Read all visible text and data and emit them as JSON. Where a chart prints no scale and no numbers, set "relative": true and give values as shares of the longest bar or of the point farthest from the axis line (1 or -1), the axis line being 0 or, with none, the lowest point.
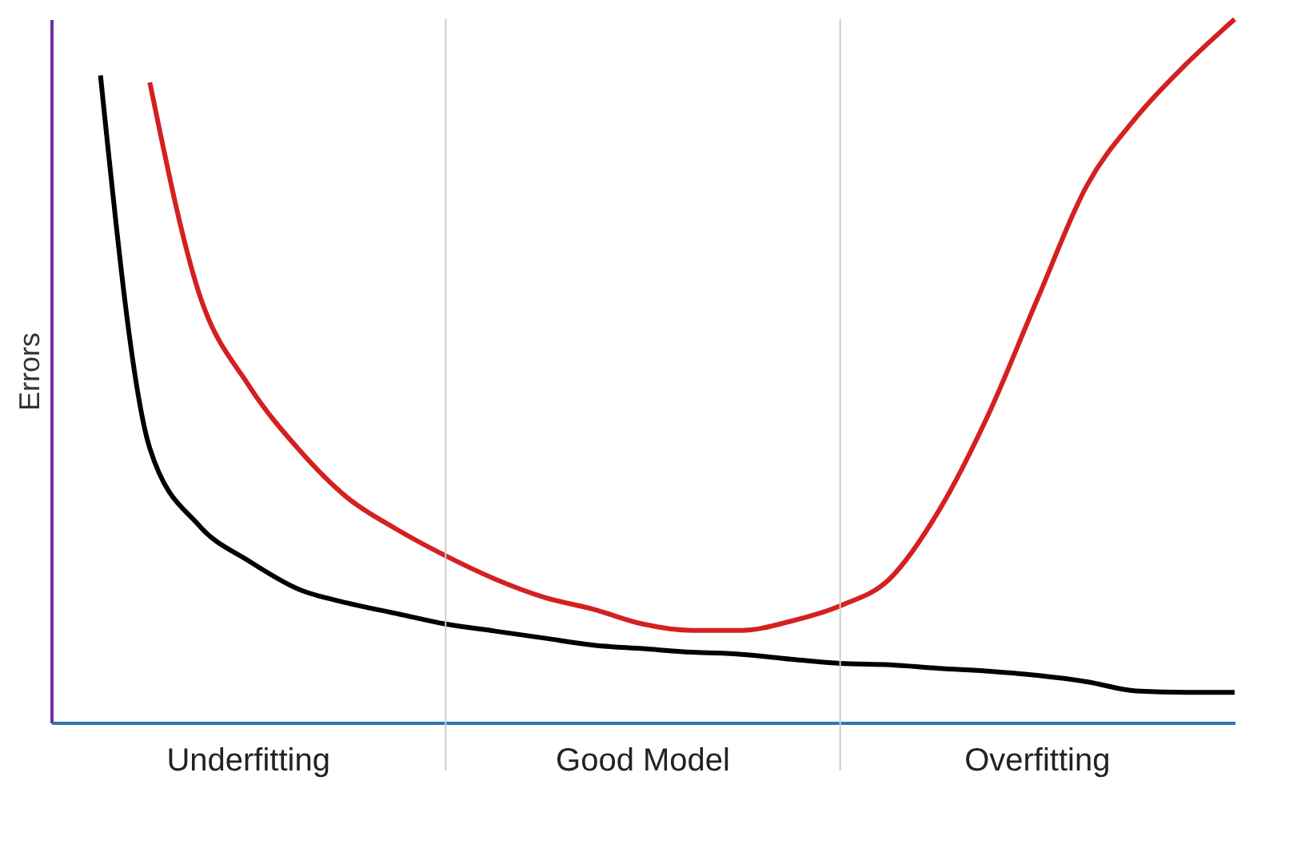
{
  "chart_data": {
    "type": "line",
    "relative": true,
    "ylabel": "Errors",
    "grid": false,
    "marker": "none",
    "line_style": "solid",
    "categories": [
      null,
      null,
      null,
      null,
      null,
      null,
      null,
      null,
      null,
      null,
      null,
      null,
      null,
      null,
      null,
      null,
      null,
      null,
      null,
      null,
      null,
      null,
      null,
      null,
      null
    ],
    "series": [
      {
        "color": "#000000",
        "values": [
          null,
          0.92,
          0.39,
          0.28,
          0.23,
          0.19,
          0.17,
          0.155,
          0.14,
          0.13,
          0.12,
          0.11,
          0.105,
          0.1,
          0.097,
          0.09,
          0.084,
          0.082,
          0.077,
          0.073,
          0.067,
          0.058,
          0.045,
          0.043,
          0.043
        ]
      },
      {
        "color": "#d42020",
        "values": [
          null,
          null,
          0.91,
          0.61,
          0.48,
          0.39,
          0.32,
          0.275,
          0.237,
          0.204,
          0.178,
          0.161,
          0.14,
          0.131,
          0.131,
          0.144,
          0.166,
          0.204,
          0.301,
          0.437,
          0.602,
          0.763,
          0.86,
          0.935,
          1
        ]
      }
    ],
    "annotations": [
      "Underfitting",
      "Good Model",
      "Overfitting"
    ]
  }
}
